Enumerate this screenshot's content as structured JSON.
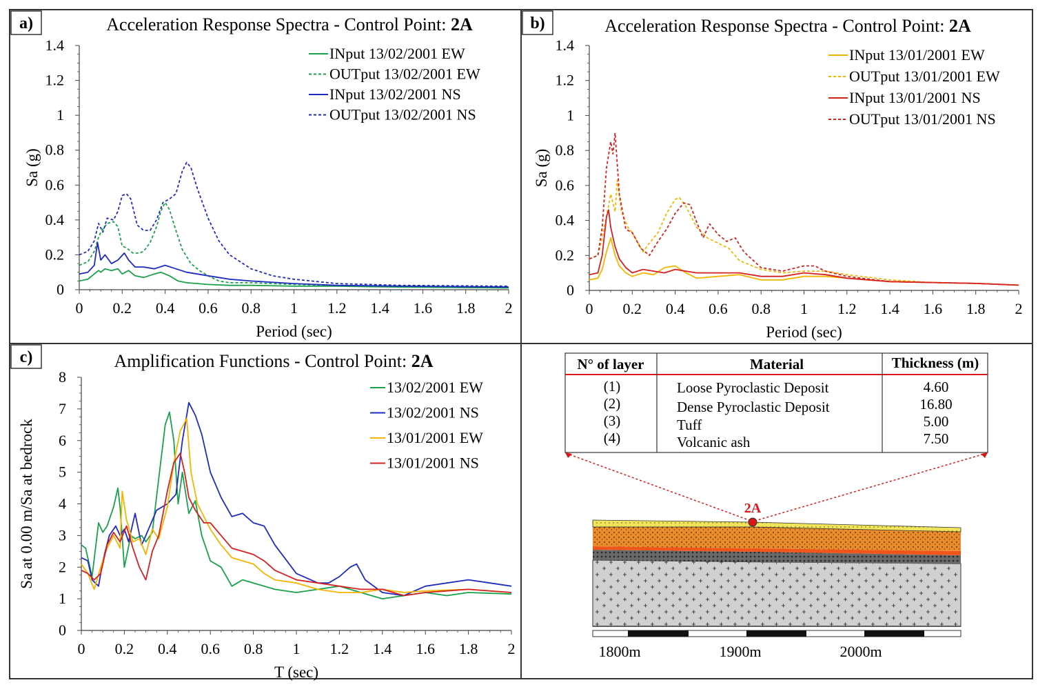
{
  "colors": {
    "green": "#19a04a",
    "blue": "#1f2bbf",
    "orange": "#f4b400",
    "red": "#d62020",
    "red_line": "#d81818",
    "frame": "#333333"
  },
  "panels": {
    "a": {
      "label": "a)"
    },
    "b": {
      "label": "b)"
    },
    "c": {
      "label": "c)"
    }
  },
  "chart_data": [
    {
      "id": "a",
      "type": "line",
      "title": "Acceleration Response Spectra - Control Point:",
      "title_bold": "2A",
      "xlabel": "Period (sec)",
      "ylabel": "Sa (g)",
      "xlim": [
        0,
        2
      ],
      "ylim": [
        0,
        1.4
      ],
      "xticks": [
        0,
        0.2,
        0.4,
        0.6,
        0.8,
        1,
        1.2,
        1.4,
        1.6,
        1.8,
        2
      ],
      "yticks": [
        0,
        0.2,
        0.4,
        0.6,
        0.8,
        1,
        1.2,
        1.4
      ],
      "series": [
        {
          "name": "INput 13/02/2001 EW",
          "color": "green",
          "dash": false,
          "x": [
            0,
            0.04,
            0.07,
            0.09,
            0.1,
            0.12,
            0.15,
            0.18,
            0.2,
            0.23,
            0.26,
            0.3,
            0.35,
            0.38,
            0.42,
            0.46,
            0.5,
            0.55,
            0.6,
            0.7,
            0.8,
            1.0,
            1.2,
            1.5,
            2.0
          ],
          "y": [
            0.05,
            0.06,
            0.09,
            0.11,
            0.1,
            0.12,
            0.11,
            0.12,
            0.09,
            0.11,
            0.08,
            0.07,
            0.09,
            0.1,
            0.08,
            0.05,
            0.04,
            0.035,
            0.03,
            0.025,
            0.025,
            0.02,
            0.02,
            0.015,
            0.01
          ]
        },
        {
          "name": "OUTput 13/02/2001 EW",
          "color": "green",
          "dash": true,
          "x": [
            0,
            0.04,
            0.07,
            0.09,
            0.1,
            0.13,
            0.16,
            0.18,
            0.2,
            0.22,
            0.25,
            0.28,
            0.3,
            0.33,
            0.36,
            0.38,
            0.4,
            0.42,
            0.45,
            0.48,
            0.52,
            0.56,
            0.6,
            0.65,
            0.7,
            0.8,
            1.0,
            1.2,
            1.5,
            2.0
          ],
          "y": [
            0.14,
            0.16,
            0.22,
            0.3,
            0.33,
            0.38,
            0.39,
            0.36,
            0.25,
            0.24,
            0.21,
            0.21,
            0.22,
            0.27,
            0.36,
            0.45,
            0.5,
            0.46,
            0.34,
            0.23,
            0.15,
            0.11,
            0.08,
            0.05,
            0.04,
            0.04,
            0.03,
            0.025,
            0.02,
            0.015
          ]
        },
        {
          "name": "INput 13/02/2001 NS",
          "color": "blue",
          "dash": false,
          "x": [
            0,
            0.04,
            0.07,
            0.085,
            0.1,
            0.12,
            0.15,
            0.18,
            0.21,
            0.23,
            0.26,
            0.3,
            0.35,
            0.4,
            0.45,
            0.5,
            0.6,
            0.7,
            0.8,
            1.0,
            1.2,
            1.5,
            2.0
          ],
          "y": [
            0.09,
            0.1,
            0.14,
            0.27,
            0.17,
            0.2,
            0.15,
            0.17,
            0.21,
            0.17,
            0.13,
            0.13,
            0.12,
            0.14,
            0.12,
            0.1,
            0.08,
            0.06,
            0.05,
            0.035,
            0.025,
            0.02,
            0.015
          ]
        },
        {
          "name": "OUTput 13/02/2001 NS",
          "color": "blue",
          "dash": true,
          "x": [
            0,
            0.04,
            0.07,
            0.09,
            0.11,
            0.13,
            0.16,
            0.18,
            0.2,
            0.22,
            0.24,
            0.27,
            0.3,
            0.33,
            0.36,
            0.39,
            0.42,
            0.45,
            0.48,
            0.5,
            0.52,
            0.55,
            0.6,
            0.65,
            0.7,
            0.8,
            0.9,
            1.0,
            1.2,
            1.5,
            2.0
          ],
          "y": [
            0.2,
            0.22,
            0.28,
            0.38,
            0.33,
            0.41,
            0.4,
            0.45,
            0.54,
            0.55,
            0.52,
            0.37,
            0.34,
            0.34,
            0.4,
            0.5,
            0.52,
            0.55,
            0.68,
            0.73,
            0.7,
            0.58,
            0.41,
            0.28,
            0.2,
            0.12,
            0.08,
            0.06,
            0.035,
            0.025,
            0.02
          ]
        }
      ]
    },
    {
      "id": "b",
      "type": "line",
      "title": "Acceleration Response Spectra - Control Point:",
      "title_bold": "2A",
      "xlabel": "Period (sec)",
      "ylabel": "Sa (g)",
      "xlim": [
        0,
        2
      ],
      "ylim": [
        0,
        1.4
      ],
      "xticks": [
        0,
        0.2,
        0.4,
        0.6,
        0.8,
        1,
        1.2,
        1.4,
        1.6,
        1.8,
        2
      ],
      "yticks": [
        0,
        0.2,
        0.4,
        0.6,
        0.8,
        1,
        1.2,
        1.4
      ],
      "series": [
        {
          "name": "INput 13/01/2001 EW",
          "color": "orange",
          "dash": false,
          "x": [
            0,
            0.04,
            0.06,
            0.08,
            0.1,
            0.12,
            0.14,
            0.17,
            0.2,
            0.25,
            0.3,
            0.35,
            0.4,
            0.45,
            0.5,
            0.6,
            0.7,
            0.8,
            0.9,
            1.0,
            1.1,
            1.2,
            1.4,
            1.6,
            1.8,
            2.0
          ],
          "y": [
            0.06,
            0.07,
            0.12,
            0.22,
            0.3,
            0.2,
            0.14,
            0.1,
            0.08,
            0.1,
            0.09,
            0.13,
            0.14,
            0.1,
            0.07,
            0.08,
            0.09,
            0.06,
            0.06,
            0.08,
            0.08,
            0.07,
            0.05,
            0.045,
            0.04,
            0.03
          ]
        },
        {
          "name": "OUTput 13/01/2001 EW",
          "color": "orange",
          "dash": true,
          "x": [
            0,
            0.04,
            0.06,
            0.08,
            0.1,
            0.12,
            0.13,
            0.15,
            0.18,
            0.2,
            0.25,
            0.28,
            0.32,
            0.36,
            0.4,
            0.42,
            0.45,
            0.5,
            0.55,
            0.6,
            0.65,
            0.7,
            0.8,
            0.9,
            1.0,
            1.1,
            1.2,
            1.4,
            1.6,
            1.8,
            2.0
          ],
          "y": [
            0.18,
            0.2,
            0.3,
            0.42,
            0.55,
            0.45,
            0.63,
            0.45,
            0.36,
            0.33,
            0.22,
            0.27,
            0.33,
            0.44,
            0.52,
            0.53,
            0.48,
            0.36,
            0.3,
            0.27,
            0.24,
            0.17,
            0.12,
            0.1,
            0.11,
            0.11,
            0.09,
            0.06,
            0.045,
            0.04,
            0.03
          ]
        },
        {
          "name": "INput 13/01/2001 NS",
          "color": "red",
          "dash": false,
          "x": [
            0,
            0.04,
            0.06,
            0.08,
            0.09,
            0.1,
            0.12,
            0.14,
            0.17,
            0.2,
            0.25,
            0.3,
            0.35,
            0.4,
            0.45,
            0.5,
            0.6,
            0.7,
            0.8,
            0.9,
            1.0,
            1.1,
            1.2,
            1.4,
            1.6,
            1.8,
            2.0
          ],
          "y": [
            0.09,
            0.1,
            0.2,
            0.42,
            0.46,
            0.36,
            0.25,
            0.18,
            0.13,
            0.1,
            0.12,
            0.11,
            0.1,
            0.12,
            0.11,
            0.1,
            0.1,
            0.1,
            0.08,
            0.08,
            0.1,
            0.09,
            0.07,
            0.05,
            0.045,
            0.04,
            0.03
          ]
        },
        {
          "name": "OUTput 13/01/2001 NS",
          "color": "red",
          "dash": true,
          "x": [
            0,
            0.04,
            0.06,
            0.08,
            0.1,
            0.11,
            0.12,
            0.14,
            0.17,
            0.2,
            0.24,
            0.28,
            0.32,
            0.36,
            0.4,
            0.44,
            0.47,
            0.5,
            0.53,
            0.56,
            0.6,
            0.64,
            0.68,
            0.72,
            0.8,
            0.9,
            1.0,
            1.05,
            1.1,
            1.2,
            1.4,
            1.6,
            1.8,
            2.0
          ],
          "y": [
            0.18,
            0.2,
            0.36,
            0.7,
            0.85,
            0.78,
            0.9,
            0.55,
            0.35,
            0.33,
            0.24,
            0.2,
            0.28,
            0.35,
            0.44,
            0.5,
            0.49,
            0.39,
            0.3,
            0.38,
            0.32,
            0.28,
            0.3,
            0.22,
            0.13,
            0.11,
            0.14,
            0.14,
            0.11,
            0.08,
            0.05,
            0.045,
            0.04,
            0.03
          ]
        }
      ]
    },
    {
      "id": "c",
      "type": "line",
      "title": "Amplification Functions - Control Point:",
      "title_bold": "2A",
      "xlabel": "T (sec)",
      "ylabel": "Sa at 0.00 m/Sa at bedrock",
      "xlim": [
        0,
        2
      ],
      "ylim": [
        0,
        8
      ],
      "xticks": [
        0,
        0.2,
        0.4,
        0.6,
        0.8,
        1,
        1.2,
        1.4,
        1.6,
        1.8,
        2
      ],
      "yticks": [
        0,
        1,
        2,
        3,
        4,
        5,
        6,
        7,
        8
      ],
      "series": [
        {
          "name": "13/02/2001 EW",
          "color": "green",
          "dash": false,
          "x": [
            0,
            0.02,
            0.05,
            0.08,
            0.1,
            0.12,
            0.15,
            0.17,
            0.18,
            0.2,
            0.23,
            0.25,
            0.28,
            0.3,
            0.33,
            0.36,
            0.39,
            0.41,
            0.43,
            0.45,
            0.47,
            0.5,
            0.53,
            0.56,
            0.6,
            0.65,
            0.7,
            0.75,
            0.8,
            0.9,
            1.0,
            1.1,
            1.2,
            1.3,
            1.4,
            1.5,
            1.6,
            1.7,
            1.8,
            2.0
          ],
          "y": [
            2.7,
            2.6,
            1.7,
            3.4,
            3.1,
            3.3,
            3.9,
            4.5,
            3.9,
            2.0,
            3.0,
            2.9,
            3.0,
            2.8,
            3.1,
            4.8,
            6.5,
            6.9,
            6.0,
            4.0,
            5.0,
            3.7,
            4.1,
            3.0,
            2.2,
            2.0,
            1.4,
            1.6,
            1.5,
            1.3,
            1.2,
            1.3,
            1.4,
            1.2,
            1.0,
            1.1,
            1.2,
            1.1,
            1.2,
            1.15
          ]
        },
        {
          "name": "13/02/2001 NS",
          "color": "blue",
          "dash": false,
          "x": [
            0,
            0.03,
            0.05,
            0.08,
            0.1,
            0.13,
            0.16,
            0.18,
            0.2,
            0.22,
            0.25,
            0.28,
            0.3,
            0.35,
            0.4,
            0.44,
            0.47,
            0.5,
            0.53,
            0.56,
            0.6,
            0.65,
            0.7,
            0.75,
            0.8,
            0.85,
            0.9,
            1.0,
            1.1,
            1.15,
            1.2,
            1.25,
            1.28,
            1.32,
            1.4,
            1.5,
            1.6,
            1.7,
            1.8,
            1.9,
            2.0
          ],
          "y": [
            2.3,
            2.2,
            1.6,
            1.4,
            2.2,
            3.0,
            3.3,
            3.0,
            3.2,
            2.8,
            3.7,
            2.7,
            3.0,
            3.8,
            4.0,
            4.3,
            6.0,
            7.2,
            6.8,
            6.2,
            5.0,
            4.2,
            3.6,
            3.7,
            3.4,
            3.3,
            2.7,
            1.8,
            1.5,
            1.5,
            1.7,
            2.0,
            2.1,
            1.6,
            1.2,
            1.1,
            1.4,
            1.5,
            1.6,
            1.5,
            1.4
          ]
        },
        {
          "name": "13/01/2001 EW",
          "color": "orange",
          "dash": false,
          "x": [
            0,
            0.03,
            0.06,
            0.09,
            0.12,
            0.15,
            0.18,
            0.19,
            0.21,
            0.24,
            0.27,
            0.3,
            0.33,
            0.36,
            0.4,
            0.43,
            0.46,
            0.49,
            0.51,
            0.54,
            0.57,
            0.6,
            0.65,
            0.7,
            0.75,
            0.8,
            0.85,
            0.9,
            1.0,
            1.1,
            1.2,
            1.3,
            1.4,
            1.5,
            1.6,
            1.8,
            2.0
          ],
          "y": [
            2.1,
            1.8,
            1.3,
            2.0,
            2.6,
            3.0,
            2.6,
            4.4,
            3.5,
            2.8,
            2.9,
            2.4,
            3.2,
            2.9,
            3.9,
            5.3,
            6.3,
            6.7,
            5.0,
            4.0,
            3.6,
            3.2,
            2.7,
            2.3,
            2.2,
            2.1,
            1.8,
            1.6,
            1.5,
            1.3,
            1.2,
            1.2,
            1.3,
            1.2,
            1.25,
            1.3,
            1.2
          ]
        },
        {
          "name": "13/01/2001 NS",
          "color": "red",
          "dash": false,
          "x": [
            0,
            0.03,
            0.06,
            0.09,
            0.12,
            0.15,
            0.18,
            0.21,
            0.24,
            0.27,
            0.3,
            0.33,
            0.36,
            0.4,
            0.43,
            0.46,
            0.48,
            0.5,
            0.53,
            0.57,
            0.6,
            0.65,
            0.7,
            0.75,
            0.8,
            0.85,
            0.9,
            1.0,
            1.1,
            1.2,
            1.3,
            1.4,
            1.5,
            1.6,
            1.8,
            2.0
          ],
          "y": [
            1.9,
            1.8,
            1.6,
            1.8,
            2.7,
            3.1,
            2.8,
            3.3,
            2.6,
            2.0,
            1.6,
            2.5,
            3.0,
            4.4,
            5.3,
            5.6,
            5.0,
            4.2,
            3.8,
            3.4,
            3.4,
            3.0,
            2.6,
            2.5,
            2.4,
            2.2,
            1.9,
            1.6,
            1.5,
            1.4,
            1.3,
            1.3,
            1.1,
            1.2,
            1.3,
            1.2
          ]
        }
      ]
    }
  ],
  "layer_table": {
    "headers": [
      "N° of layer",
      "Material",
      "Thickness (m)"
    ],
    "rows": [
      {
        "n": "(1)",
        "material": "Loose Pyroclastic Deposit",
        "thickness": "4.60"
      },
      {
        "n": "(2)",
        "material": "Dense Pyroclastic Deposit",
        "thickness": "16.80"
      },
      {
        "n": "(3)",
        "material": "Tuff",
        "thickness": "5.00"
      },
      {
        "n": "(4)",
        "material": "Volcanic ash",
        "thickness": "7.50"
      }
    ]
  },
  "section": {
    "control_point": "2A",
    "scale_labels": [
      "1800m",
      "1900m",
      "2000m"
    ],
    "layer_colors": {
      "pyroclastic_top": "#ece25a",
      "dense": "#e98a2c",
      "tuff_line": "#f15a18",
      "ash": "#6e6e6e",
      "bedrock": "#cfcfcf"
    }
  }
}
